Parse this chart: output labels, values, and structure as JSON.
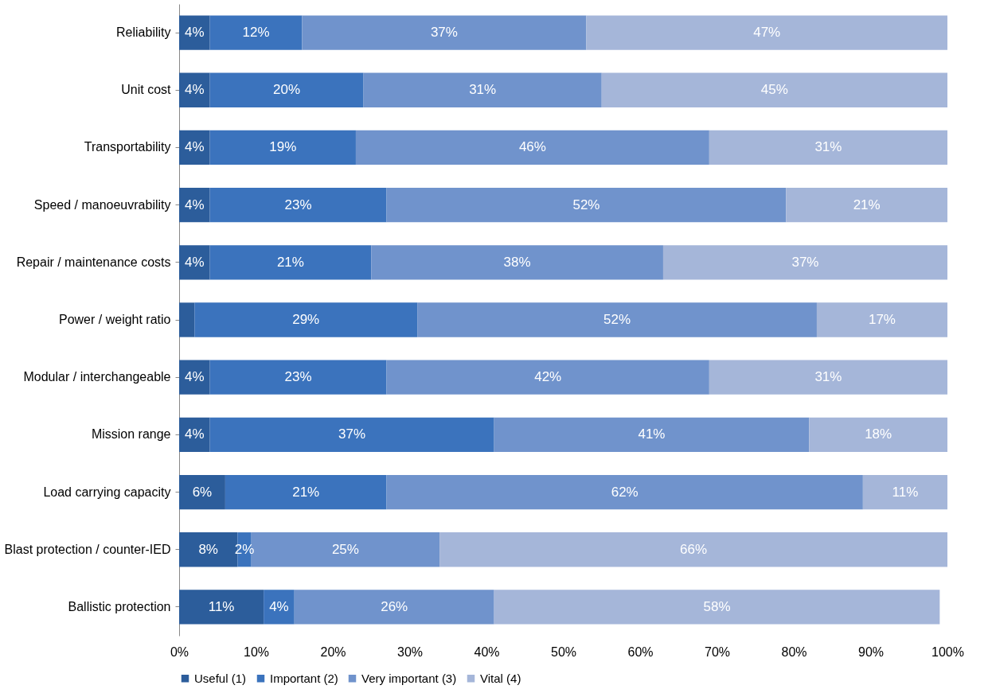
{
  "chart_data": {
    "type": "bar",
    "orientation": "horizontal",
    "stacked": true,
    "categories": [
      "Reliability",
      "Unit cost",
      "Transportability",
      "Speed / manoeuvrability",
      "Repair / maintenance costs",
      "Power / weight ratio",
      "Modular / interchangeable",
      "Mission range",
      "Load carrying capacity",
      "Blast protection / counter-IED",
      "Ballistic protection"
    ],
    "series": [
      {
        "name": "Useful (1)",
        "color": "#2c5d9b",
        "values": [
          4,
          4,
          4,
          4,
          4,
          2,
          4,
          4,
          6,
          7.6,
          11
        ],
        "value_labels": [
          "4%",
          "4%",
          "4%",
          "4%",
          "4%",
          null,
          "4%",
          "4%",
          "6%",
          "8%",
          "11%"
        ]
      },
      {
        "name": "Important (2)",
        "color": "#3b73bd",
        "values": [
          12,
          20,
          19,
          23,
          21,
          29,
          23,
          37,
          21,
          1.8,
          4
        ],
        "value_labels": [
          "12%",
          "20%",
          "19%",
          "23%",
          "21%",
          "29%",
          "23%",
          "37%",
          "21%",
          "2%",
          "4%"
        ]
      },
      {
        "name": "Very important (3)",
        "color": "#7093cc",
        "values": [
          37,
          31,
          46,
          52,
          38,
          52,
          42,
          41,
          62,
          24.5,
          26
        ],
        "value_labels": [
          "37%",
          "31%",
          "46%",
          "52%",
          "38%",
          "52%",
          "42%",
          "41%",
          "62%",
          "25%",
          "26%"
        ]
      },
      {
        "name": "Vital (4)",
        "color": "#a5b6d9",
        "values": [
          47,
          45,
          31,
          21,
          37,
          17,
          31,
          18,
          11,
          66.1,
          58
        ],
        "value_labels": [
          "47%",
          "45%",
          "31%",
          "21%",
          "37%",
          "17%",
          "31%",
          "18%",
          "11%",
          "66%",
          "58%"
        ]
      }
    ],
    "xlim": [
      0,
      100
    ],
    "xticks": [
      {
        "value": 0,
        "label": "0%"
      },
      {
        "value": 10,
        "label": "10%"
      },
      {
        "value": 20,
        "label": "20%"
      },
      {
        "value": 30,
        "label": "30%"
      },
      {
        "value": 40,
        "label": "40%"
      },
      {
        "value": 50,
        "label": "50%"
      },
      {
        "value": 60,
        "label": "60%"
      },
      {
        "value": 70,
        "label": "70%"
      },
      {
        "value": 80,
        "label": "80%"
      },
      {
        "value": 90,
        "label": "90%"
      },
      {
        "value": 100,
        "label": "100%"
      }
    ],
    "grid": false,
    "legend": "bottom"
  }
}
